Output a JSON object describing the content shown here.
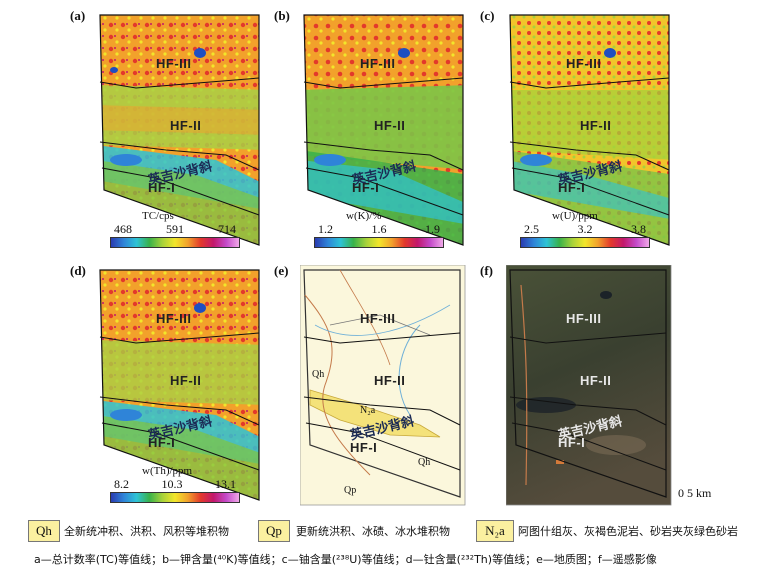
{
  "panels": [
    {
      "label": "(a)",
      "zones": [
        "HF-III",
        "HF-II",
        "HF-I"
      ],
      "anticline": "英吉沙背斜",
      "scale_title": "TC/cps",
      "ticks": [
        "468",
        "591",
        "714"
      ],
      "style": "heat"
    },
    {
      "label": "(b)",
      "zones": [
        "HF-III",
        "HF-II",
        "HF-I"
      ],
      "anticline": "英吉沙背斜",
      "scale_title": "w(K)/%",
      "ticks": [
        "1.2",
        "1.6",
        "1.9"
      ],
      "style": "heat"
    },
    {
      "label": "(c)",
      "zones": [
        "HF-III",
        "HF-II",
        "HF-I"
      ],
      "anticline": "英吉沙背斜",
      "scale_title": "w(U)/ppm",
      "ticks": [
        "2.5",
        "3.2",
        "3.8"
      ],
      "style": "heat"
    },
    {
      "label": "(d)",
      "zones": [
        "HF-III",
        "HF-II",
        "HF-I"
      ],
      "anticline": "英吉沙背斜",
      "scale_title": "w(Th)/ppm",
      "ticks": [
        "8.2",
        "10.3",
        "13.1"
      ],
      "style": "heat"
    },
    {
      "label": "(e)",
      "zones": [
        "HF-III",
        "HF-II",
        "HF-I"
      ],
      "anticline": "英吉沙背斜",
      "map_labels": [
        "Qh",
        "N₂a",
        "Qh",
        "Qp"
      ],
      "style": "geo"
    },
    {
      "label": "(f)",
      "zones": [
        "HF-III",
        "HF-II",
        "HF-I"
      ],
      "anticline": "英吉沙背斜",
      "style": "sat"
    }
  ],
  "scalebar": {
    "zero": "0",
    "value": "5 km"
  },
  "legend": [
    {
      "code": "Qh",
      "text": "全新统冲积、洪积、风积等堆积物"
    },
    {
      "code": "Qp",
      "text": "更新统洪积、冰碛、冰水堆积物"
    },
    {
      "code": "N₂a",
      "text": "阿图什组灰、灰褐色泥岩、砂岩夹灰绿色砂岩"
    }
  ],
  "caption": "a—总计数率(TC)等值线；b—钾含量(⁴⁰K)等值线；c—铀含量(²³⁸U)等值线；d—钍含量(²³²Th)等值线；e—地质图；f—遥感影像",
  "colors": {
    "heat_red": "#e3392b",
    "heat_yellow": "#f2e62b",
    "heat_green": "#7cc447",
    "heat_blue": "#2f84d8",
    "geo_bg": "#fbf7dc",
    "geo_yellow": "#f4e27a",
    "sat_bg": "#3a4030"
  }
}
